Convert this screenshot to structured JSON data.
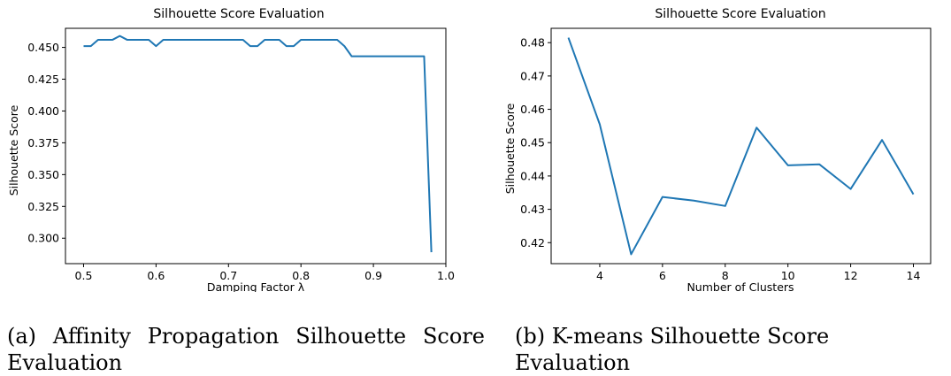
{
  "chart_data": [
    {
      "type": "line",
      "title": "Silhouette Score Evaluation",
      "xlabel": "Damping Factor λ",
      "ylabel": "Silhouette Score",
      "xlim": [
        0.475,
        1.0
      ],
      "ylim": [
        0.28,
        0.465
      ],
      "xticks": [
        "0.5",
        "0.6",
        "0.7",
        "0.8",
        "0.9",
        "1.0"
      ],
      "xtick_values": [
        0.5,
        0.6,
        0.7,
        0.8,
        0.9,
        1.0
      ],
      "yticks": [
        "0.300",
        "0.325",
        "0.350",
        "0.375",
        "0.400",
        "0.425",
        "0.450"
      ],
      "ytick_values": [
        0.3,
        0.325,
        0.35,
        0.375,
        0.4,
        0.425,
        0.45
      ],
      "grid": false,
      "color": "#1f77b4",
      "series": [
        {
          "x": [
            0.5,
            0.51,
            0.52,
            0.53,
            0.54,
            0.55,
            0.56,
            0.57,
            0.58,
            0.59,
            0.6,
            0.61,
            0.62,
            0.63,
            0.64,
            0.65,
            0.66,
            0.67,
            0.68,
            0.69,
            0.7,
            0.71,
            0.72,
            0.73,
            0.74,
            0.75,
            0.76,
            0.77,
            0.78,
            0.79,
            0.8,
            0.81,
            0.82,
            0.83,
            0.84,
            0.85,
            0.86,
            0.87,
            0.88,
            0.89,
            0.9,
            0.91,
            0.92,
            0.93,
            0.94,
            0.95,
            0.96,
            0.97,
            0.98
          ],
          "y": [
            0.451,
            0.451,
            0.456,
            0.456,
            0.456,
            0.459,
            0.456,
            0.456,
            0.456,
            0.456,
            0.451,
            0.456,
            0.456,
            0.456,
            0.456,
            0.456,
            0.456,
            0.456,
            0.456,
            0.456,
            0.456,
            0.456,
            0.456,
            0.451,
            0.451,
            0.456,
            0.456,
            0.456,
            0.451,
            0.451,
            0.456,
            0.456,
            0.456,
            0.456,
            0.456,
            0.456,
            0.451,
            0.443,
            0.443,
            0.443,
            0.443,
            0.443,
            0.443,
            0.443,
            0.443,
            0.443,
            0.443,
            0.443,
            0.289
          ]
        }
      ]
    },
    {
      "type": "line",
      "title": "Silhouette Score Evaluation",
      "xlabel": "Number of Clusters",
      "ylabel": "Silhouette Score",
      "xlim": [
        2.45,
        14.55
      ],
      "ylim": [
        0.4137,
        0.4843
      ],
      "xticks": [
        "4",
        "6",
        "8",
        "10",
        "12",
        "14"
      ],
      "xtick_values": [
        4,
        6,
        8,
        10,
        12,
        14
      ],
      "yticks": [
        "0.42",
        "0.43",
        "0.44",
        "0.45",
        "0.46",
        "0.47",
        "0.48"
      ],
      "ytick_values": [
        0.42,
        0.43,
        0.44,
        0.45,
        0.46,
        0.47,
        0.48
      ],
      "grid": false,
      "color": "#1f77b4",
      "series": [
        {
          "x": [
            3,
            4,
            5,
            6,
            7,
            8,
            9,
            10,
            11,
            12,
            13,
            14
          ],
          "y": [
            0.4815,
            0.4555,
            0.4165,
            0.4337,
            0.4326,
            0.431,
            0.4545,
            0.4432,
            0.4435,
            0.4361,
            0.4508,
            0.4345
          ]
        }
      ]
    }
  ],
  "captions": {
    "a": "(a)  Affinity Propagation Silhouette Score Evaluation",
    "b": "(b)  K-means Silhouette Score Evaluation"
  }
}
